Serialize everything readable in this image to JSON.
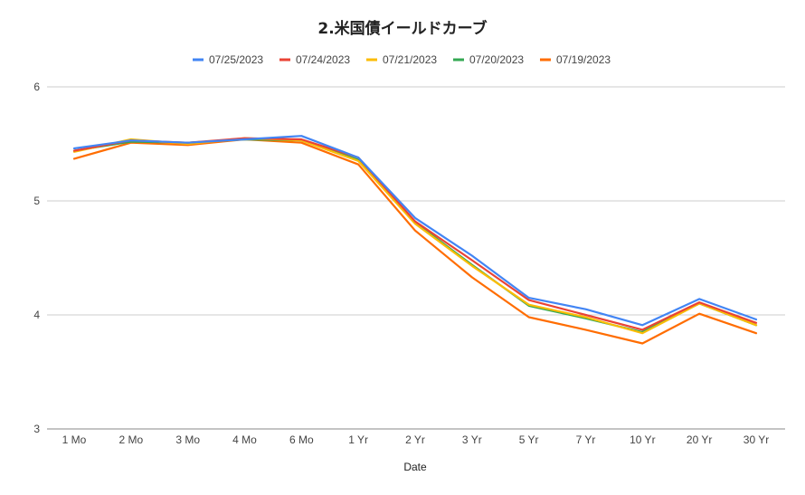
{
  "chart_data": {
    "type": "line",
    "title": "2.米国債イールドカーブ",
    "xlabel": "Date",
    "ylabel": "",
    "ylim": [
      3,
      6
    ],
    "yticks": [
      "3",
      "4",
      "5",
      "6"
    ],
    "yticks_values": [
      3,
      4,
      5,
      6
    ],
    "grid": true,
    "legend_position": "top",
    "categories": [
      "1 Mo",
      "2 Mo",
      "3 Mo",
      "4 Mo",
      "6 Mo",
      "1 Yr",
      "2 Yr",
      "3 Yr",
      "5 Yr",
      "7 Yr",
      "10 Yr",
      "20 Yr",
      "30 Yr"
    ],
    "series": [
      {
        "name": "07/25/2023",
        "color": "#4285F4",
        "values": [
          5.46,
          5.53,
          5.51,
          5.54,
          5.57,
          5.38,
          4.85,
          4.52,
          4.15,
          4.05,
          3.91,
          4.14,
          3.96
        ]
      },
      {
        "name": "07/24/2023",
        "color": "#EA4335",
        "values": [
          5.44,
          5.53,
          5.51,
          5.55,
          5.54,
          5.38,
          4.82,
          4.48,
          4.13,
          4.0,
          3.87,
          4.11,
          3.93
        ]
      },
      {
        "name": "07/21/2023",
        "color": "#FBBC04",
        "values": [
          5.43,
          5.54,
          5.5,
          5.55,
          5.53,
          5.35,
          4.8,
          4.43,
          4.09,
          3.98,
          3.84,
          4.1,
          3.91
        ]
      },
      {
        "name": "07/20/2023",
        "color": "#34A853",
        "values": [
          5.44,
          5.52,
          5.51,
          5.54,
          5.53,
          5.36,
          4.81,
          4.44,
          4.08,
          3.97,
          3.85,
          4.1,
          3.91
        ]
      },
      {
        "name": "07/19/2023",
        "color": "#FF6D01",
        "values": [
          5.37,
          5.51,
          5.49,
          5.54,
          5.51,
          5.32,
          4.74,
          4.33,
          3.98,
          3.87,
          3.75,
          4.01,
          3.84
        ]
      }
    ]
  }
}
